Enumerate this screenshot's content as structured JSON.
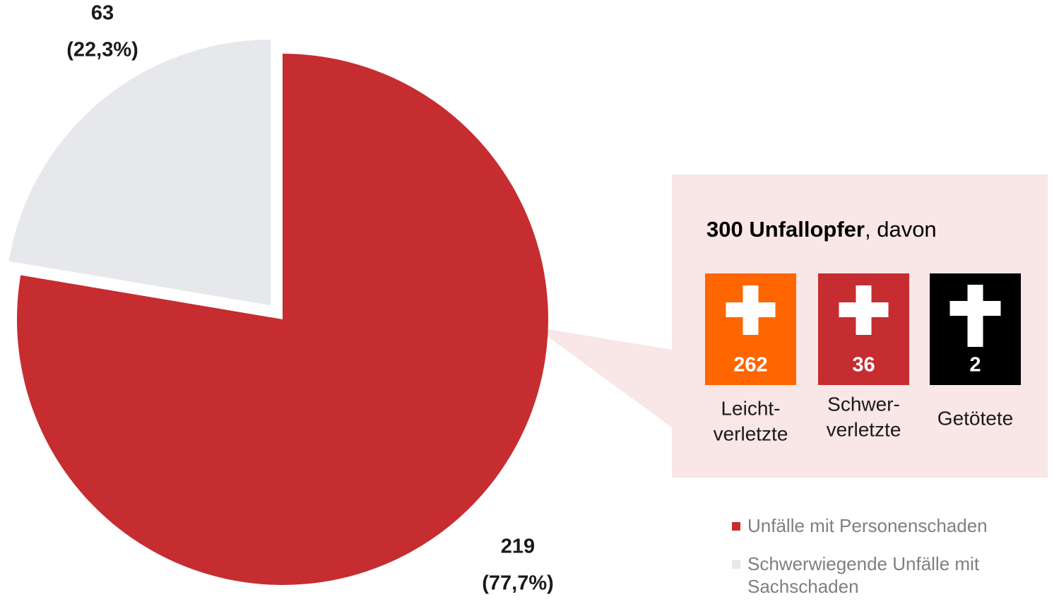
{
  "chart_data": {
    "type": "pie",
    "categories": [
      "Unfälle mit Personenschaden",
      "Schwerwiegende Unfälle mit Sachschaden"
    ],
    "values": [
      219,
      63
    ],
    "percentages": [
      77.7,
      22.3
    ],
    "percentage_labels": [
      "(77,7%)",
      "(22,3%)"
    ],
    "colors": [
      "#c62d30",
      "#e6e8ec"
    ],
    "legend": "bottom-right"
  },
  "callout": {
    "total": 300,
    "title": "Unfallopfer",
    "suffix": ", davon",
    "items": [
      {
        "value": 262,
        "label": [
          "Leicht-",
          "verletzte"
        ],
        "color": "#ff6600"
      },
      {
        "value": 36,
        "label": [
          "Schwer-",
          "verletzte"
        ],
        "color": "#c62d30"
      },
      {
        "value": 2,
        "label": [
          "Getötete"
        ],
        "color": "#000000"
      }
    ]
  }
}
